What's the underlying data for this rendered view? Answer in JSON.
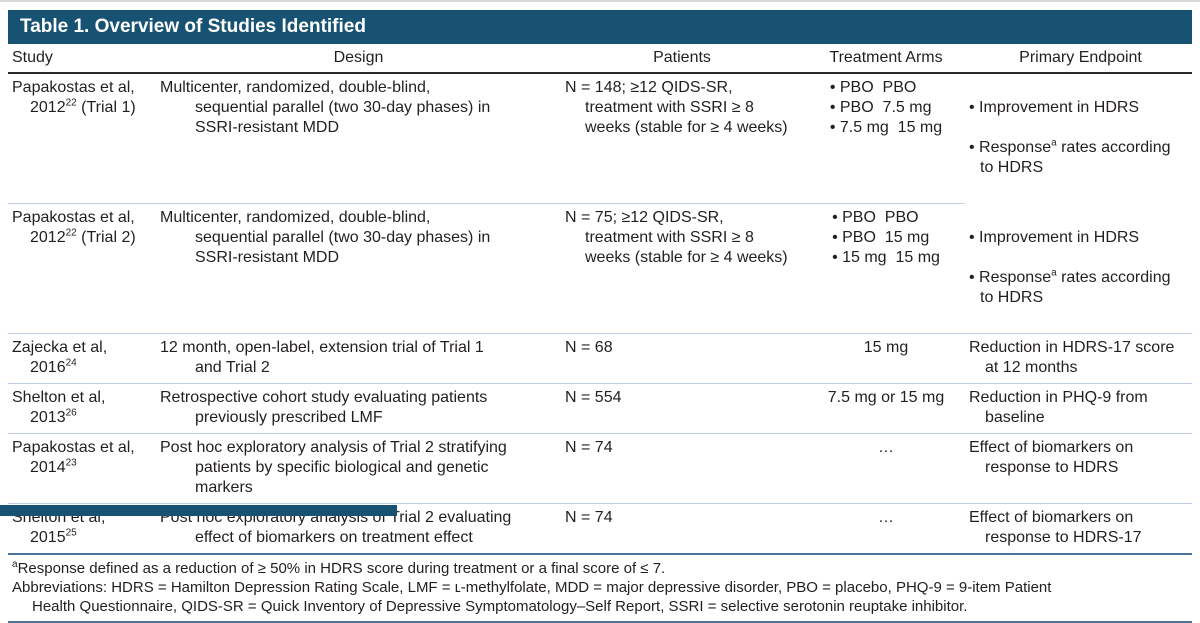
{
  "title": "Table 1. Overview of Studies Identified",
  "columns": {
    "study": "Study",
    "design": "Design",
    "patients": "Patients",
    "arms": "Treatment Arms",
    "endpoint": "Primary Endpoint"
  },
  "rows": [
    {
      "study_pre": "Papakostas et al,\n2012",
      "study_sup": "22",
      "study_post": " (Trial 1)",
      "design": "Multicenter, randomized, double-blind,\nsequential parallel (two 30-day phases) in\nSSRI-resistant MDD",
      "patients": "N = 148; ≥12 QIDS-SR,\ntreatment with SSRI ≥ 8\nweeks (stable for ≥ 4 weeks)",
      "arms": "• PBO  PBO\n• PBO  7.5 mg\n• 7.5 mg  15 mg",
      "endpoint_item1": "• Improvement in HDRS",
      "endpoint_pre": "• Response",
      "endpoint_sup": "a",
      "endpoint_post": " rates according\nto HDRS"
    },
    {
      "study_pre": "Papakostas et al,\n2012",
      "study_sup": "22",
      "study_post": " (Trial 2)",
      "design": "Multicenter, randomized, double-blind,\nsequential parallel (two 30-day phases) in\nSSRI-resistant MDD",
      "patients": "N = 75; ≥12 QIDS-SR,\ntreatment with SSRI ≥ 8\nweeks (stable for ≥ 4 weeks)",
      "arms": "• PBO  PBO\n• PBO  15 mg\n• 15 mg  15 mg",
      "endpoint_item1": "• Improvement in HDRS",
      "endpoint_pre": "• Response",
      "endpoint_sup": "a",
      "endpoint_post": " rates according\nto HDRS"
    },
    {
      "study_pre": "Zajecka et al,\n2016",
      "study_sup": "24",
      "study_post": "",
      "design": "12 month, open-label, extension trial of Trial 1\nand Trial 2",
      "patients": "N = 68",
      "arms": "15 mg",
      "endpoint": "Reduction in HDRS-17 score\nat 12 months"
    },
    {
      "study_pre": "Shelton et al,\n2013",
      "study_sup": "26",
      "study_post": "",
      "design": "Retrospective cohort study evaluating patients\npreviously prescribed LMF",
      "patients": "N = 554",
      "arms": "7.5 mg or 15 mg",
      "endpoint": "Reduction in PHQ-9 from\nbaseline"
    },
    {
      "study_pre": "Papakostas et al,\n2014",
      "study_sup": "23",
      "study_post": "",
      "design": "Post hoc exploratory analysis of Trial 2 stratifying\npatients by specific biological and genetic\nmarkers",
      "patients": "N = 74",
      "arms": "…",
      "endpoint": "Effect of biomarkers on\nresponse to HDRS"
    },
    {
      "study_pre": "Shelton et al,\n2015",
      "study_sup": "25",
      "study_post": "",
      "design": "Post hoc exploratory analysis of Trial 2 evaluating\neffect of biomarkers on treatment effect",
      "patients": "N = 74",
      "arms": "…",
      "endpoint": "Effect of biomarkers on\nresponse to HDRS-17"
    }
  ],
  "footnotes": {
    "response_sup": "a",
    "response_note": "Response defined as a reduction of ≥ 50% in HDRS score during treatment or a final score of ≤ 7.",
    "abbreviations": "Abbreviations: HDRS = Hamilton Depression Rating Scale, LMF = ʟ-methylfolate, MDD = major depressive disorder, PBO = placebo, PHQ-9 = 9-item Patient\nHealth Questionnaire, QIDS-SR = Quick Inventory of Depressive Symptomatology–Self Report, SSRI = selective serotonin reuptake inhibitor."
  },
  "colors": {
    "title_bar": "#175273",
    "header_rule": "#2a2a2a",
    "row_separator": "#bfd0e4",
    "footnote_rule": "#49759c",
    "text": "#231f20"
  }
}
